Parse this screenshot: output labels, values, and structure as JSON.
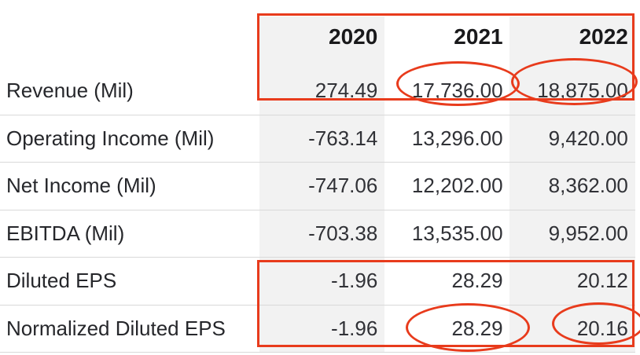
{
  "chart_data": {
    "type": "table",
    "columns": [
      "2020",
      "2021",
      "2022"
    ],
    "rows": [
      {
        "label": "Revenue (Mil)",
        "values": [
          "274.49",
          "17,736.00",
          "18,875.00"
        ]
      },
      {
        "label": "Operating Income (Mil)",
        "values": [
          "-763.14",
          "13,296.00",
          "9,420.00"
        ]
      },
      {
        "label": "Net Income (Mil)",
        "values": [
          "-747.06",
          "12,202.00",
          "8,362.00"
        ]
      },
      {
        "label": "EBITDA (Mil)",
        "values": [
          "-703.38",
          "13,535.00",
          "9,952.00"
        ]
      },
      {
        "label": "Diluted EPS",
        "values": [
          "-1.96",
          "28.29",
          "20.12"
        ]
      },
      {
        "label": "Normalized Diluted EPS",
        "values": [
          "-1.96",
          "28.29",
          "20.16"
        ]
      }
    ]
  },
  "annotations": {
    "color": "#e83b1c",
    "boxes": [
      {
        "target": "year header and Revenue (Mil) row"
      },
      {
        "target": "Diluted EPS and Normalized Diluted EPS rows"
      }
    ],
    "circles": [
      {
        "target": "Revenue 2021 value 17,736.00"
      },
      {
        "target": "Revenue 2022 value 18,875.00"
      },
      {
        "target": "Normalized Diluted EPS 2021 value 28.29"
      },
      {
        "target": "Normalized Diluted EPS 2022 value 20.16"
      }
    ]
  },
  "colors": {
    "column_shade": "#f2f2f2",
    "row_divider": "#d9d9d9",
    "text": "#26272b"
  }
}
